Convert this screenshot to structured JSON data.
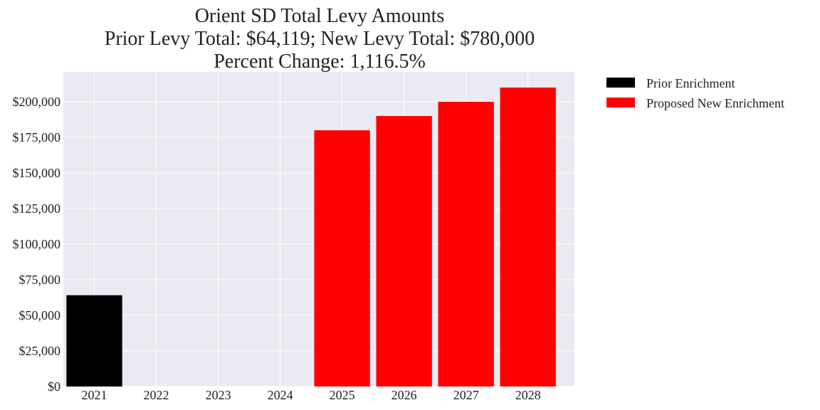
{
  "chart_data": {
    "type": "bar",
    "title": [
      "Orient SD Total Levy Amounts",
      "Prior Levy Total:  $64,119; New Levy Total: $780,000",
      "Percent Change: 1,116.5%"
    ],
    "xlabel": "",
    "ylabel": "",
    "categories": [
      "2021",
      "2022",
      "2023",
      "2024",
      "2025",
      "2026",
      "2027",
      "2028"
    ],
    "series": [
      {
        "name": "Prior Enrichment",
        "color": "#000000",
        "values": [
          64119,
          0,
          0,
          0,
          0,
          0,
          0,
          0
        ]
      },
      {
        "name": "Proposed New Enrichment",
        "color": "#ff0000",
        "values": [
          0,
          0,
          0,
          0,
          180000,
          190000,
          200000,
          210000
        ]
      }
    ],
    "ylim": [
      0,
      221000
    ],
    "yticks": [
      0,
      25000,
      50000,
      75000,
      100000,
      125000,
      150000,
      175000,
      200000
    ],
    "ytick_labels": [
      "$0",
      "$25,000",
      "$50,000",
      "$75,000",
      "$100,000",
      "$125,000",
      "$150,000",
      "$175,000",
      "$200,000"
    ],
    "grid": true,
    "legend_position": "outside-top-right",
    "plot_background": "#eaeaf2"
  }
}
